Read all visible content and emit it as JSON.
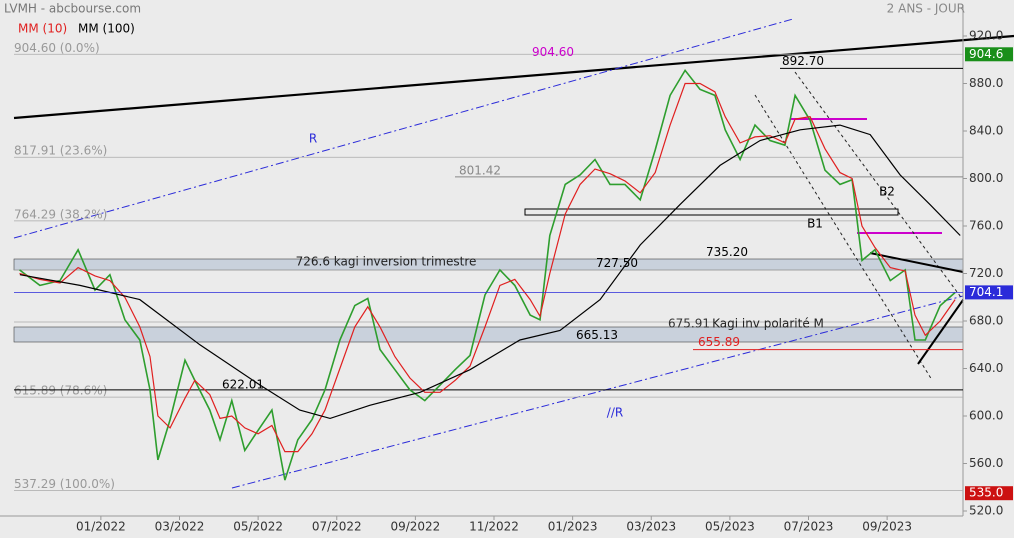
{
  "chart_data": {
    "type": "line",
    "title": "LVMH - abcbourse.com",
    "subtitle": "2 ANS - JOUR",
    "xlim": [
      -2.21,
      21.93
    ],
    "ylim": [
      515.8,
      946.1
    ],
    "xticks": [
      {
        "value": 0,
        "label": "01/2022"
      },
      {
        "value": 2,
        "label": "03/2022"
      },
      {
        "value": 4,
        "label": "05/2022"
      },
      {
        "value": 6,
        "label": "07/2022"
      },
      {
        "value": 8,
        "label": "09/2022"
      },
      {
        "value": 10,
        "label": "11/2022"
      },
      {
        "value": 12,
        "label": "01/2023"
      },
      {
        "value": 14,
        "label": "03/2023"
      },
      {
        "value": 16,
        "label": "05/2023"
      },
      {
        "value": 18,
        "label": "07/2023"
      },
      {
        "value": 20,
        "label": "09/2023"
      }
    ],
    "yticks": [
      {
        "value": 520,
        "label": "520.0"
      },
      {
        "value": 560,
        "label": "560.0"
      },
      {
        "value": 600,
        "label": "600.0"
      },
      {
        "value": 640,
        "label": "640.0"
      },
      {
        "value": 680,
        "label": "680.0"
      },
      {
        "value": 720,
        "label": "720.0"
      },
      {
        "value": 760,
        "label": "760.0"
      },
      {
        "value": 800,
        "label": "800.0"
      },
      {
        "value": 840,
        "label": "840.0"
      },
      {
        "value": 880,
        "label": "880.0"
      },
      {
        "value": 920,
        "label": "920.0"
      }
    ],
    "series": [
      {
        "color": "#2e9e2e",
        "x": [
          -2.07,
          -1.55,
          -1.04,
          -0.58,
          -0.15,
          0.23,
          0.61,
          0.99,
          1.25,
          1.45,
          1.76,
          2.14,
          2.39,
          2.77,
          3.03,
          3.33,
          3.66,
          4.0,
          4.35,
          4.68,
          5.01,
          5.37,
          5.7,
          6.08,
          6.46,
          6.79,
          7.1,
          7.48,
          7.86,
          8.24,
          8.63,
          9.01,
          9.39,
          9.77,
          10.15,
          10.53,
          10.92,
          11.17,
          11.42,
          11.81,
          12.19,
          12.57,
          12.95,
          13.33,
          13.72,
          14.1,
          14.48,
          14.86,
          15.24,
          15.62,
          15.88,
          16.26,
          16.64,
          17.02,
          17.4,
          17.66,
          18.04,
          18.42,
          18.8,
          19.11,
          19.36,
          19.69,
          20.08,
          20.46,
          20.71,
          20.97,
          21.35,
          21.73
        ],
        "values": [
          723,
          710,
          714,
          740,
          706,
          719,
          681,
          664,
          622,
          563,
          597,
          647,
          630,
          605,
          580,
          613,
          571,
          588,
          605,
          546,
          580,
          597,
          622,
          664,
          693,
          699,
          656,
          639,
          622,
          613,
          626,
          639,
          651,
          702,
          723,
          710,
          685,
          681,
          752,
          795,
          803,
          816,
          795,
          795,
          782,
          824,
          870,
          891,
          875,
          870,
          841,
          816,
          845,
          832,
          828,
          870,
          849,
          807,
          795,
          799,
          731,
          740,
          714,
          723,
          664,
          664,
          693,
          704
        ]
      },
      {
        "name": "MM (10)",
        "color": "#e02020",
        "x": [
          -2.07,
          -1.55,
          -1.04,
          -0.58,
          -0.15,
          0.23,
          0.61,
          0.99,
          1.25,
          1.45,
          1.76,
          2.14,
          2.39,
          2.77,
          3.03,
          3.33,
          3.66,
          4.0,
          4.35,
          4.68,
          5.01,
          5.37,
          5.7,
          6.08,
          6.46,
          6.79,
          7.1,
          7.48,
          7.86,
          8.24,
          8.63,
          9.01,
          9.39,
          9.77,
          10.15,
          10.53,
          10.92,
          11.17,
          11.42,
          11.81,
          12.19,
          12.57,
          12.95,
          13.33,
          13.72,
          14.1,
          14.48,
          14.86,
          15.24,
          15.62,
          15.88,
          16.26,
          16.64,
          17.02,
          17.4,
          17.66,
          18.04,
          18.42,
          18.8,
          19.11,
          19.36,
          19.69,
          20.08,
          20.46,
          20.71,
          20.97,
          21.35,
          21.73
        ],
        "values": [
          720,
          715,
          712,
          725,
          718,
          714,
          700,
          675,
          650,
          600,
          590,
          615,
          630,
          618,
          598,
          600,
          590,
          585,
          592,
          570,
          570,
          585,
          605,
          640,
          675,
          692,
          675,
          650,
          632,
          620,
          620,
          630,
          642,
          675,
          710,
          715,
          698,
          684,
          720,
          770,
          795,
          808,
          804,
          798,
          788,
          805,
          845,
          880,
          880,
          873,
          852,
          830,
          835,
          836,
          830,
          850,
          852,
          825,
          805,
          800,
          760,
          742,
          725,
          722,
          685,
          668,
          680,
          698
        ]
      },
      {
        "name": "MM (100)",
        "color": "#000000",
        "x": [
          -2.06,
          -0.53,
          0.99,
          2.52,
          4.05,
          5.06,
          5.83,
          6.84,
          8.12,
          9.39,
          10.66,
          11.68,
          12.7,
          13.72,
          14.73,
          15.75,
          16.77,
          17.79,
          18.8,
          19.57,
          20.33,
          21.09,
          21.86
        ],
        "values": [
          719,
          710,
          698,
          660,
          626,
          605,
          598,
          609,
          620,
          639,
          664,
          672,
          698,
          744,
          778,
          811,
          832,
          841,
          845,
          837,
          803,
          778,
          752
        ]
      }
    ],
    "fibonacci": [
      {
        "value": 904.6,
        "label": "904.60  (0.0%)"
      },
      {
        "value": 817.91,
        "label": "817.91  (23.6%)"
      },
      {
        "value": 764.29,
        "label": "764.29  (38.2%)"
      },
      {
        "value": 615.89,
        "label": "615.89  (78.6%)"
      },
      {
        "value": 537.29,
        "label": "537.29  (100.0%)"
      }
    ],
    "levels": [
      {
        "value": 904.6,
        "label": "904.60",
        "color": "#cc00cc"
      },
      {
        "value": 892.7,
        "label": "892.70",
        "color": "#000000"
      },
      {
        "value": 801.42,
        "label": "801.42",
        "color": "#888888"
      },
      {
        "value": 735.2,
        "label": "735.20",
        "color": "#000000"
      },
      {
        "value": 727.5,
        "label": "727.50",
        "color": "#000000"
      },
      {
        "value": 675.91,
        "label": "675.91",
        "color": "#333333"
      },
      {
        "value": 665.13,
        "label": "665.13",
        "color": "#000000"
      },
      {
        "value": 655.89,
        "label": "655.89",
        "color": "#e02020"
      },
      {
        "value": 622.01,
        "label": "622.01",
        "color": "#000000"
      }
    ],
    "price_tags": [
      {
        "value": 904.6,
        "label": "904.6",
        "color": "#1a8f1a"
      },
      {
        "value": 704.1,
        "label": "704.1",
        "color": "#2b2bd9"
      },
      {
        "value": 535,
        "label": "535.0",
        "color": "#cc1111"
      }
    ],
    "notes": [
      "R",
      "//R",
      "B1",
      "B2",
      "726.6 kagi inversion trimestre",
      "Kagi inv polarité M"
    ]
  }
}
